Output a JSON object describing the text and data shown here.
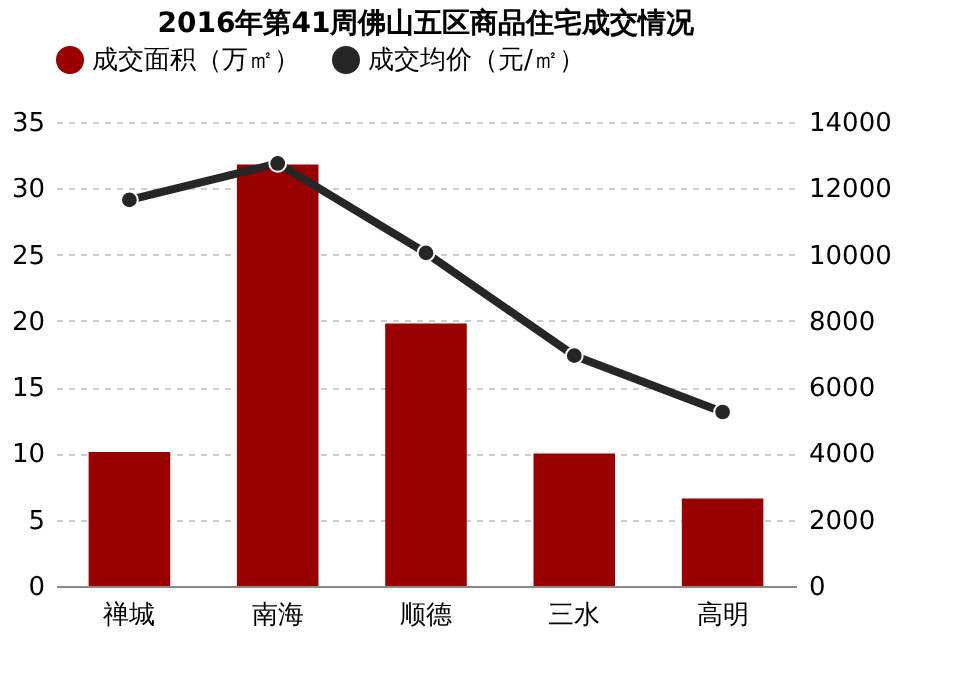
{
  "chart_data": {
    "type": "bar",
    "title": "2016年第41周佛山五区商品住宅成交情况",
    "categories": [
      "禅城",
      "南海",
      "顺德",
      "三水",
      "高明"
    ],
    "series": [
      {
        "name": "成交面积（万㎡）",
        "color": "#990000",
        "values": [
          10.1,
          31.8,
          19.8,
          10.0,
          6.6
        ]
      },
      {
        "name": "成交均价（元/㎡）",
        "type": "line",
        "axis": "y2",
        "color": "#262626",
        "marker": "circle",
        "values": [
          11650,
          12750,
          10050,
          6950,
          5250
        ]
      }
    ],
    "ylim": [
      0,
      35
    ],
    "yticks": [
      0,
      5,
      10,
      15,
      20,
      25,
      30,
      35
    ],
    "y2lim": [
      0,
      14000
    ],
    "y2ticks": [
      0,
      2000,
      4000,
      6000,
      8000,
      10000,
      12000,
      14000
    ],
    "grid": "y",
    "legend": "top"
  }
}
